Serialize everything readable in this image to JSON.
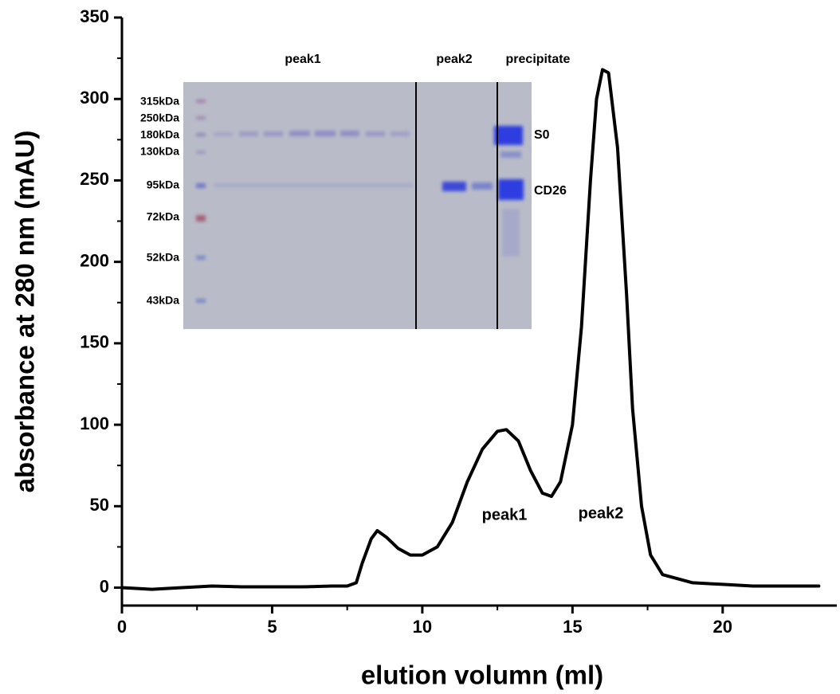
{
  "chart_data": {
    "type": "line",
    "x_label": "elution volumn (ml)",
    "y_label": "absorbance at 280 nm (mAU)",
    "x": [
      0,
      1,
      2,
      3,
      4,
      5,
      6,
      7,
      7.5,
      7.8,
      8,
      8.3,
      8.5,
      8.8,
      9.2,
      9.6,
      10,
      10.5,
      11,
      11.5,
      12,
      12.5,
      12.8,
      13.2,
      13.6,
      14,
      14.3,
      14.6,
      15,
      15.3,
      15.6,
      15.8,
      16,
      16.2,
      16.5,
      16.8,
      17,
      17.3,
      17.6,
      18,
      19,
      20,
      21,
      22,
      23.2
    ],
    "series": [
      {
        "color": "#000000",
        "values": [
          0,
          -1,
          0,
          1,
          0.5,
          0.5,
          0.5,
          1,
          1,
          3,
          15,
          30,
          35,
          31,
          24,
          20,
          20,
          25,
          40,
          65,
          85,
          96,
          97,
          90,
          72,
          58,
          56,
          65,
          100,
          160,
          250,
          300,
          318,
          316,
          270,
          180,
          110,
          50,
          20,
          8,
          3,
          2,
          1,
          1,
          1
        ]
      }
    ],
    "xlim": [
      0,
      23.8
    ],
    "xticks": [
      0,
      5,
      10,
      15,
      20
    ],
    "ylim": [
      -11,
      350
    ],
    "yticks": [
      0,
      50,
      100,
      150,
      200,
      250,
      300,
      350
    ],
    "annotations": [
      "peak1",
      "peak2"
    ]
  },
  "inset": {
    "headers": [
      "peak1",
      "peak2",
      "precipitate"
    ],
    "markers": [
      "315kDa",
      "250kDa",
      "180kDa",
      "130kDa",
      "95kDa",
      "72kDa",
      "52kDa",
      "43kDa"
    ],
    "band_labels": [
      "S0",
      "CD26"
    ]
  }
}
